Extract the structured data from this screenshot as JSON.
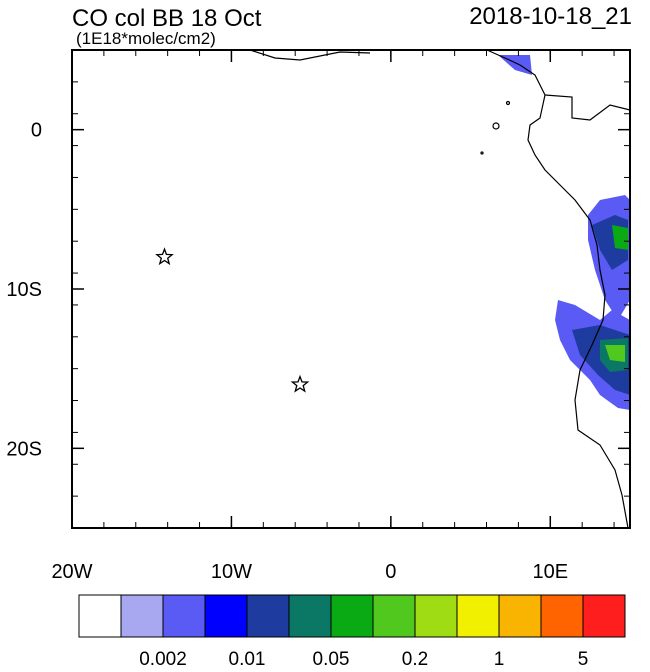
{
  "header": {
    "title": "CO col BB 18 Oct",
    "units": "(1E18*molec/cm2)",
    "timestamp": "2018-10-18_21"
  },
  "map": {
    "xlim": [
      -20,
      15
    ],
    "ylim": [
      -25,
      5
    ],
    "xticks": [
      {
        "value": -20,
        "label": "20W"
      },
      {
        "value": -10,
        "label": "10W"
      },
      {
        "value": 0,
        "label": "0"
      },
      {
        "value": 10,
        "label": "10E"
      }
    ],
    "yticks": [
      {
        "value": 0,
        "label": "0"
      },
      {
        "value": -10,
        "label": "10S"
      },
      {
        "value": -20,
        "label": "20S"
      }
    ],
    "markers": [
      {
        "lon": -14.2,
        "lat": -8
      },
      {
        "lon": -5.7,
        "lat": -16
      }
    ]
  },
  "colorbar": {
    "colors": [
      "#ffffff",
      "#a8a8f0",
      "#5a5af5",
      "#0000ff",
      "#1e3ca0",
      "#0a7864",
      "#0aaa14",
      "#50c81e",
      "#a0dc14",
      "#f0f000",
      "#f8b400",
      "#ff6400",
      "#ff1e1e"
    ],
    "labels": [
      "0.002",
      "0.01",
      "0.05",
      "0.2",
      "1",
      "5"
    ]
  }
}
